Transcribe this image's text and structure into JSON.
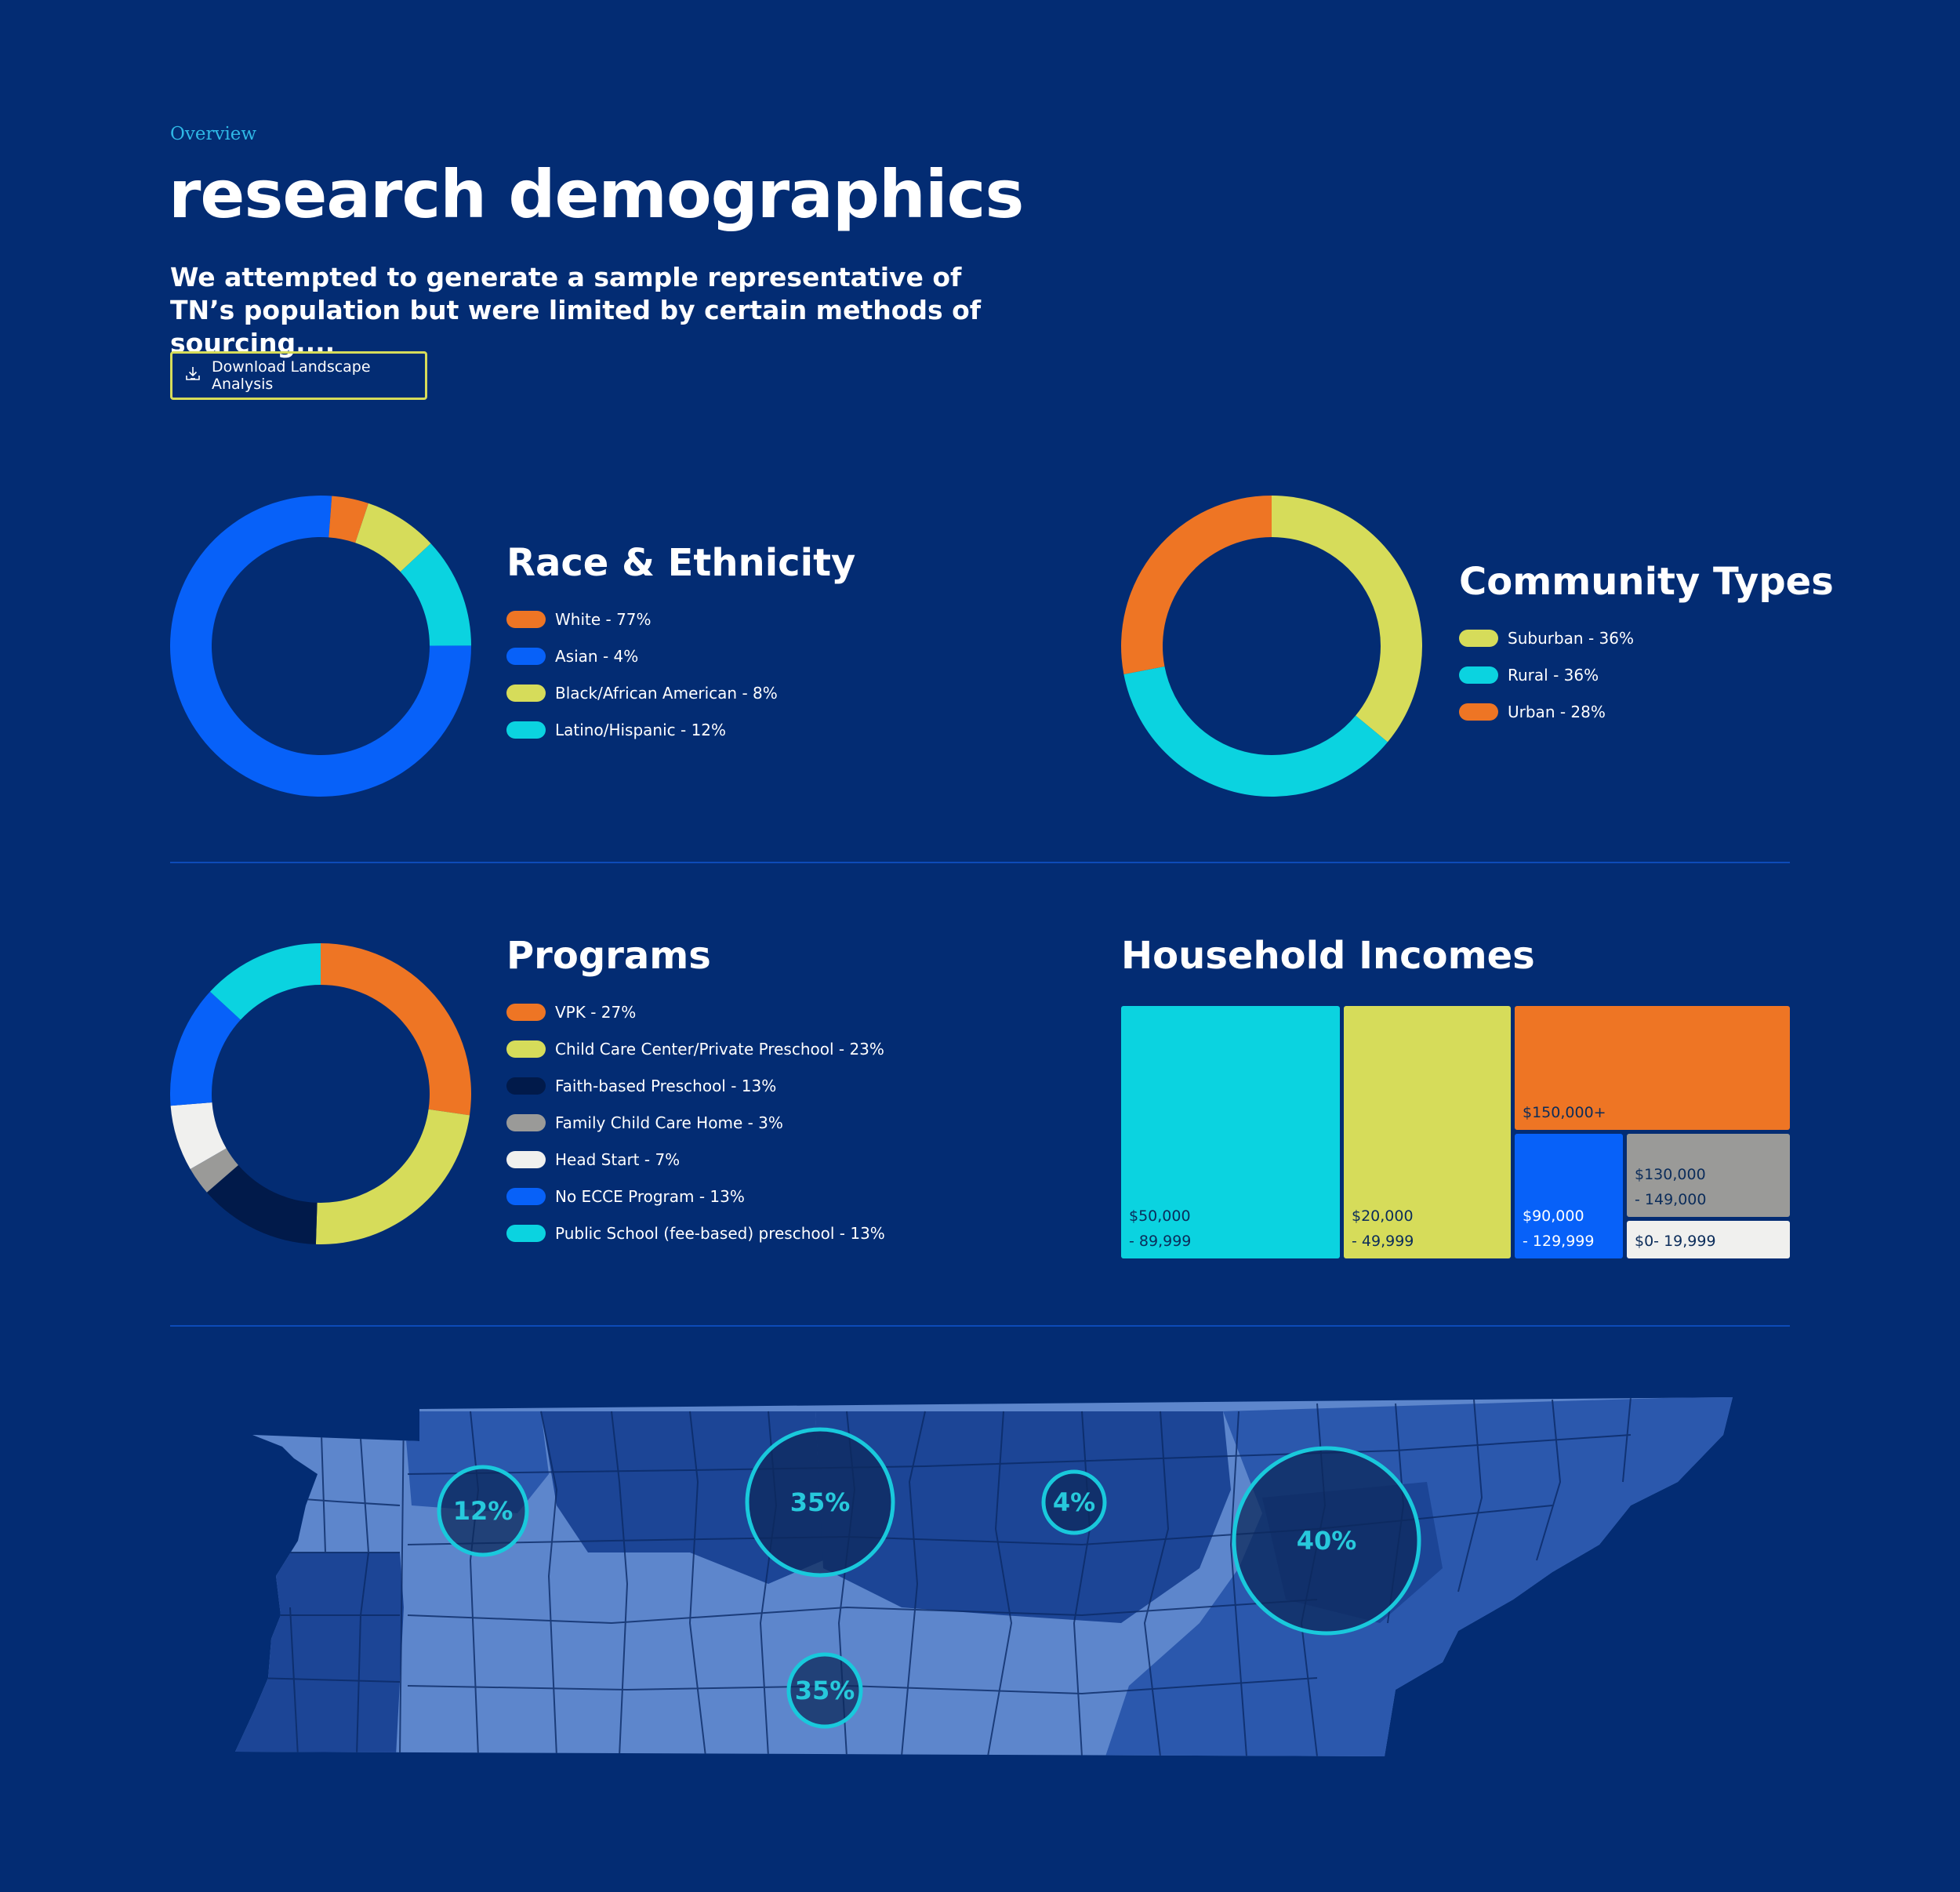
{
  "header": {
    "eyebrow": "Overview",
    "title": "research demographics",
    "subtitle": "We attempted to generate a sample representative of TN’s population but were limited by certain methods of sourcing....",
    "download_label": "Download Landscape Analysis",
    "download_icon": "download-icon"
  },
  "colors": {
    "background": "#032c73",
    "orange": "#ee7524",
    "yellow": "#d6dc5a",
    "cyan": "#0bd3e0",
    "blue": "#0761f9",
    "navy": "#011a4a",
    "gray": "#9a9a98",
    "white": "#f0f0ee"
  },
  "chart_data": [
    {
      "id": "race",
      "type": "pie",
      "title": "Race & Ethnicity",
      "slices": [
        {
          "label": "White - 77%",
          "value": 77,
          "color": "#0761f9"
        },
        {
          "label": "Asian - 4%",
          "value": 4,
          "color": "#ee7524"
        },
        {
          "label": "Black/African American - 8%",
          "value": 8,
          "color": "#d6dc5a"
        },
        {
          "label": "Latino/Hispanic - 12%",
          "value": 12,
          "color": "#0bd3e0"
        }
      ],
      "legend": [
        {
          "label": "White - 77%",
          "color": "#ee7524"
        },
        {
          "label": "Asian - 4%",
          "color": "#0761f9"
        },
        {
          "label": "Black/African American - 8%",
          "color": "#d6dc5a"
        },
        {
          "label": "Latino/Hispanic - 12%",
          "color": "#0bd3e0"
        }
      ]
    },
    {
      "id": "community",
      "type": "pie",
      "title": "Community Types",
      "slices": [
        {
          "label": "Suburban - 36%",
          "value": 36,
          "color": "#d6dc5a"
        },
        {
          "label": "Rural - 36%",
          "value": 36,
          "color": "#0bd3e0"
        },
        {
          "label": "Urban - 28%",
          "value": 28,
          "color": "#ee7524"
        }
      ],
      "legend": [
        {
          "label": "Suburban - 36%",
          "color": "#d6dc5a"
        },
        {
          "label": "Rural - 36%",
          "color": "#0bd3e0"
        },
        {
          "label": "Urban - 28%",
          "color": "#ee7524"
        }
      ]
    },
    {
      "id": "programs",
      "type": "pie",
      "title": "Programs",
      "slices": [
        {
          "label": "VPK - 27%",
          "value": 27,
          "color": "#ee7524"
        },
        {
          "label": "Child Care Center/Private Preschool - 23%",
          "value": 23,
          "color": "#d6dc5a"
        },
        {
          "label": "Faith-based Preschool - 13%",
          "value": 13,
          "color": "#011a4a"
        },
        {
          "label": "Family Child Care Home - 3%",
          "value": 3,
          "color": "#9a9a98"
        },
        {
          "label": "Head Start - 7%",
          "value": 7,
          "color": "#f0f0ee"
        },
        {
          "label": "No ECCE Program - 13%",
          "value": 13,
          "color": "#0761f9"
        },
        {
          "label": "Public School (fee-based) preschool - 13%",
          "value": 13,
          "color": "#0bd3e0"
        }
      ],
      "legend": [
        {
          "label": "VPK - 27%",
          "color": "#ee7524"
        },
        {
          "label": "Child Care Center/Private Preschool - 23%",
          "color": "#d6dc5a"
        },
        {
          "label": "Faith-based Preschool - 13%",
          "color": "#011a4a"
        },
        {
          "label": "Family Child Care Home - 3%",
          "color": "#9a9a98"
        },
        {
          "label": "Head Start - 7%",
          "color": "#f0f0ee"
        },
        {
          "label": "No ECCE Program - 13%",
          "color": "#0761f9"
        },
        {
          "label": "Public School (fee-based) preschool - 13%",
          "color": "#0bd3e0"
        }
      ]
    },
    {
      "id": "income",
      "type": "treemap",
      "title": "Household Incomes",
      "cells": [
        {
          "line1": "$50,000",
          "line2": "- 89,999",
          "color": "#0bd3e0",
          "text_color": "#0b2c5a"
        },
        {
          "line1": "$20,000",
          "line2": "- 49,999",
          "color": "#d6dc5a",
          "text_color": "#0b2c5a"
        },
        {
          "line1": "$150,000+",
          "line2": "",
          "color": "#ee7524",
          "text_color": "#0b2c5a"
        },
        {
          "line1": "$90,000",
          "line2": "- 129,999",
          "color": "#0761f9",
          "text_color": "#ffffff"
        },
        {
          "line1": "$130,000",
          "line2": "- 149,000",
          "color": "#9a9a98",
          "text_color": "#0b2c5a"
        },
        {
          "line1": "$0- 19,999",
          "line2": "",
          "color": "#f0f0ee",
          "text_color": "#0b2c5a"
        }
      ]
    },
    {
      "id": "regions",
      "type": "map",
      "bubbles": [
        {
          "label": "12%",
          "value": 12
        },
        {
          "label": "35%",
          "value": 35
        },
        {
          "label": "4%",
          "value": 4
        },
        {
          "label": "40%",
          "value": 40
        },
        {
          "label": "35%",
          "value": 35
        }
      ]
    }
  ]
}
